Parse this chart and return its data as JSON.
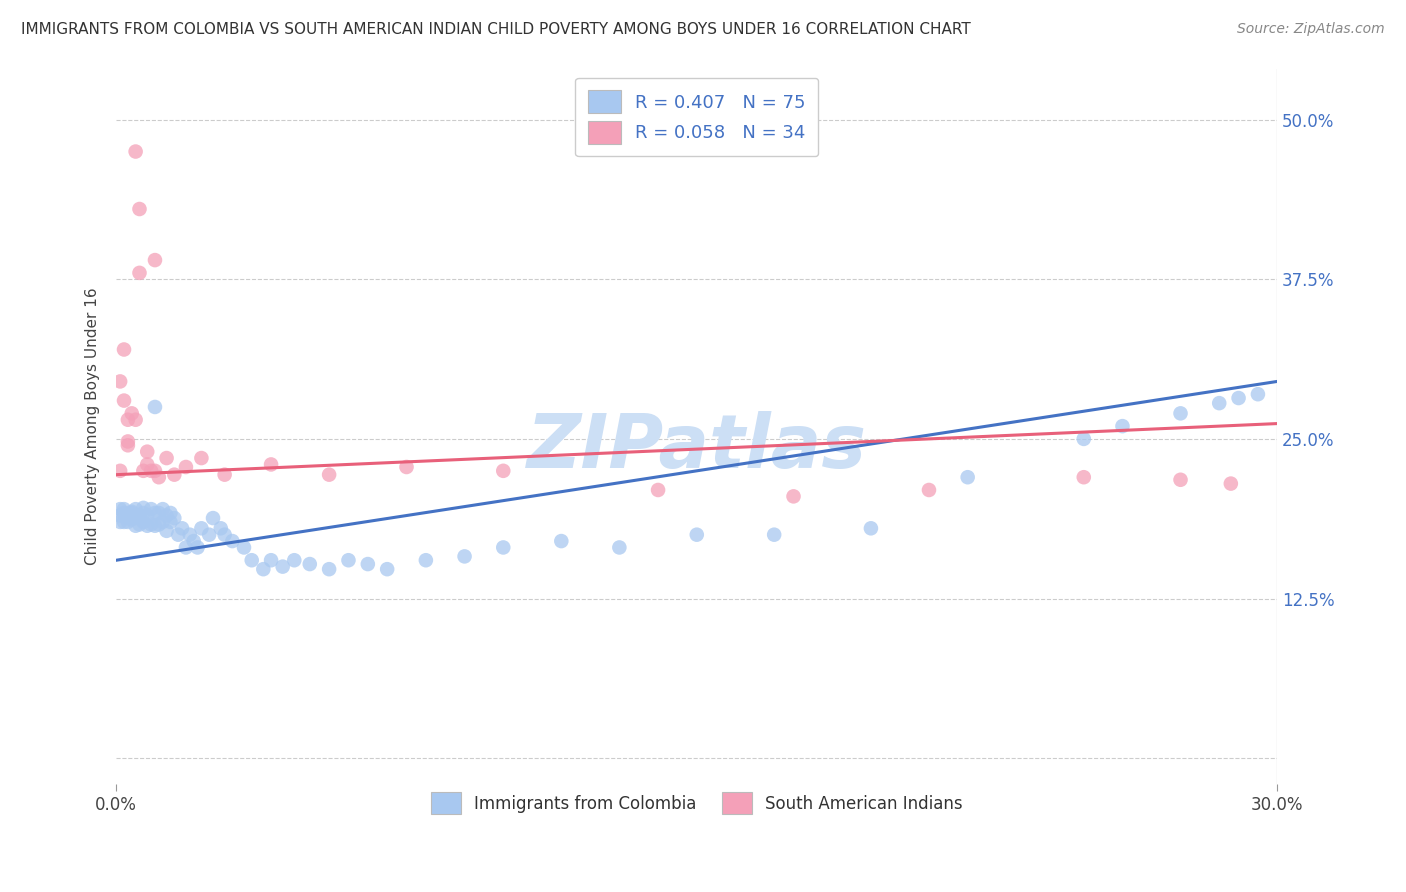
{
  "title": "IMMIGRANTS FROM COLOMBIA VS SOUTH AMERICAN INDIAN CHILD POVERTY AMONG BOYS UNDER 16 CORRELATION CHART",
  "source": "Source: ZipAtlas.com",
  "ylabel": "Child Poverty Among Boys Under 16",
  "legend_label_blue": "Immigrants from Colombia",
  "legend_label_pink": "South American Indians",
  "blue_color": "#A8C8F0",
  "pink_color": "#F4A0B8",
  "blue_line_color": "#4472C4",
  "pink_line_color": "#E8607A",
  "watermark": "ZIPatlas",
  "xlim": [
    0.0,
    0.3
  ],
  "ylim": [
    -0.02,
    0.54
  ],
  "ytick_vals": [
    0.0,
    0.125,
    0.25,
    0.375,
    0.5
  ],
  "ytick_labels": [
    "",
    "12.5%",
    "25.0%",
    "37.5%",
    "50.0%"
  ],
  "blue_line_x0": 0.0,
  "blue_line_y0": 0.155,
  "blue_line_x1": 0.3,
  "blue_line_y1": 0.295,
  "pink_line_x0": 0.0,
  "pink_line_y0": 0.222,
  "pink_line_x1": 0.3,
  "pink_line_y1": 0.262,
  "blue_pts_x": [
    0.001,
    0.001,
    0.001,
    0.002,
    0.002,
    0.002,
    0.003,
    0.003,
    0.003,
    0.004,
    0.004,
    0.004,
    0.005,
    0.005,
    0.005,
    0.006,
    0.006,
    0.006,
    0.007,
    0.007,
    0.007,
    0.008,
    0.008,
    0.009,
    0.009,
    0.01,
    0.01,
    0.01,
    0.011,
    0.011,
    0.012,
    0.012,
    0.013,
    0.013,
    0.014,
    0.014,
    0.015,
    0.016,
    0.017,
    0.018,
    0.019,
    0.02,
    0.021,
    0.022,
    0.024,
    0.025,
    0.027,
    0.028,
    0.03,
    0.033,
    0.035,
    0.038,
    0.04,
    0.043,
    0.046,
    0.05,
    0.055,
    0.06,
    0.065,
    0.07,
    0.08,
    0.09,
    0.1,
    0.115,
    0.13,
    0.15,
    0.17,
    0.195,
    0.22,
    0.25,
    0.26,
    0.275,
    0.285,
    0.29,
    0.295
  ],
  "blue_pts_y": [
    0.19,
    0.195,
    0.185,
    0.185,
    0.195,
    0.192,
    0.188,
    0.19,
    0.185,
    0.193,
    0.187,
    0.192,
    0.182,
    0.19,
    0.195,
    0.183,
    0.19,
    0.188,
    0.185,
    0.192,
    0.196,
    0.182,
    0.19,
    0.195,
    0.183,
    0.182,
    0.192,
    0.275,
    0.183,
    0.192,
    0.185,
    0.195,
    0.178,
    0.19,
    0.185,
    0.192,
    0.188,
    0.175,
    0.18,
    0.165,
    0.175,
    0.17,
    0.165,
    0.18,
    0.175,
    0.188,
    0.18,
    0.175,
    0.17,
    0.165,
    0.155,
    0.148,
    0.155,
    0.15,
    0.155,
    0.152,
    0.148,
    0.155,
    0.152,
    0.148,
    0.155,
    0.158,
    0.165,
    0.17,
    0.165,
    0.175,
    0.175,
    0.18,
    0.22,
    0.25,
    0.26,
    0.27,
    0.278,
    0.282,
    0.285
  ],
  "pink_pts_x": [
    0.001,
    0.001,
    0.002,
    0.002,
    0.003,
    0.003,
    0.004,
    0.005,
    0.005,
    0.006,
    0.006,
    0.007,
    0.008,
    0.008,
    0.009,
    0.01,
    0.011,
    0.013,
    0.015,
    0.018,
    0.022,
    0.028,
    0.04,
    0.055,
    0.075,
    0.1,
    0.14,
    0.175,
    0.21,
    0.25,
    0.275,
    0.288,
    0.01,
    0.003
  ],
  "pink_pts_y": [
    0.225,
    0.295,
    0.28,
    0.32,
    0.248,
    0.265,
    0.27,
    0.265,
    0.475,
    0.43,
    0.38,
    0.225,
    0.23,
    0.24,
    0.225,
    0.225,
    0.22,
    0.235,
    0.222,
    0.228,
    0.235,
    0.222,
    0.23,
    0.222,
    0.228,
    0.225,
    0.21,
    0.205,
    0.21,
    0.22,
    0.218,
    0.215,
    0.39,
    0.245
  ]
}
